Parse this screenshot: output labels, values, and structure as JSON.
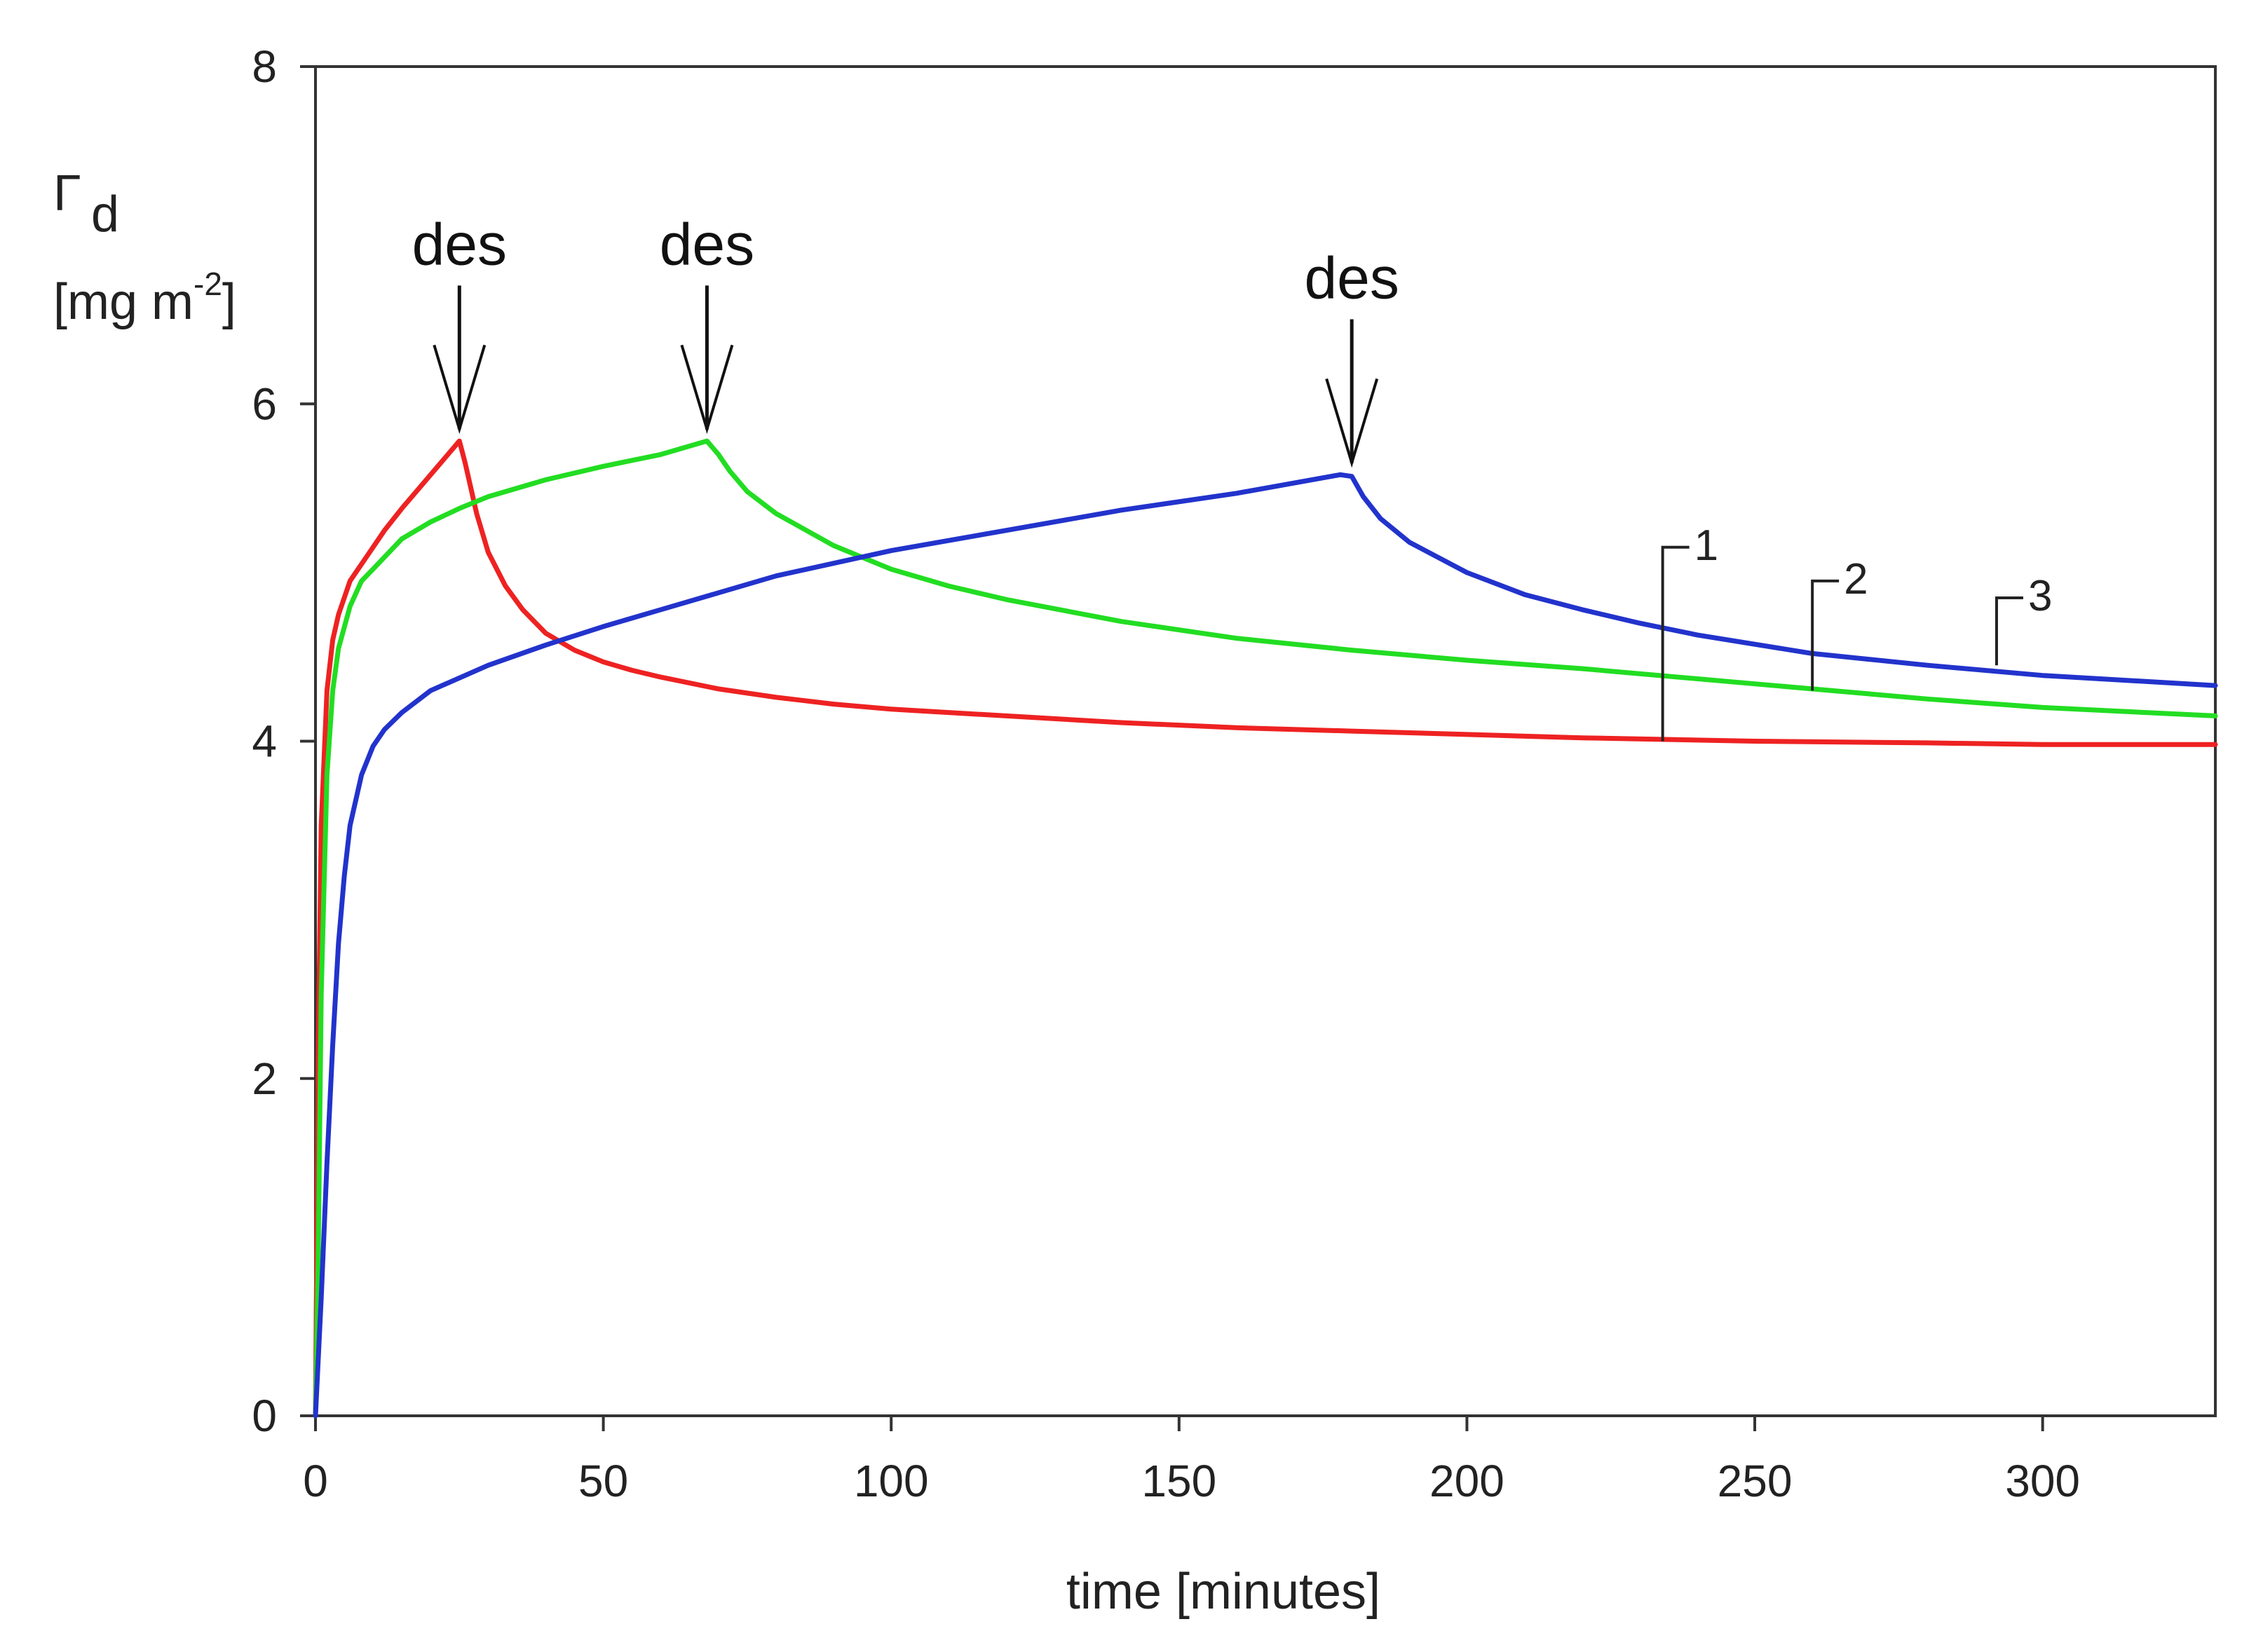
{
  "chart_data": {
    "type": "line",
    "title": "",
    "xlabel": "time [minutes]",
    "ylabel_symbol": "Γ",
    "ylabel_subscript": "d",
    "ylabel_unit_prefix": "[mg m",
    "ylabel_unit_exponent": "-2",
    "ylabel_unit_suffix": "]",
    "xlim": [
      0,
      330
    ],
    "ylim": [
      0,
      8
    ],
    "xticks": [
      0,
      50,
      100,
      150,
      200,
      250,
      300
    ],
    "yticks": [
      0,
      2,
      4,
      6,
      8
    ],
    "grid": false,
    "series": [
      {
        "name": "1",
        "color": "#ee2222",
        "x": [
          0,
          0.5,
          1,
          2,
          3,
          4,
          6,
          8,
          10,
          12,
          15,
          18,
          21,
          25,
          26,
          28,
          30,
          33,
          36,
          40,
          45,
          50,
          55,
          60,
          70,
          80,
          90,
          100,
          120,
          140,
          160,
          180,
          200,
          220,
          250,
          280,
          300,
          330
        ],
        "values": [
          0,
          2.2,
          3.5,
          4.3,
          4.6,
          4.75,
          4.95,
          5.05,
          5.15,
          5.25,
          5.38,
          5.5,
          5.62,
          5.78,
          5.65,
          5.35,
          5.12,
          4.92,
          4.78,
          4.64,
          4.54,
          4.47,
          4.42,
          4.38,
          4.31,
          4.26,
          4.22,
          4.19,
          4.15,
          4.11,
          4.08,
          4.06,
          4.04,
          4.02,
          4.0,
          3.99,
          3.98,
          3.98
        ]
      },
      {
        "name": "2",
        "color": "#22dd22",
        "x": [
          0,
          0.5,
          1,
          2,
          3,
          4,
          6,
          8,
          10,
          15,
          20,
          25,
          30,
          40,
          50,
          60,
          68,
          70,
          72,
          75,
          80,
          90,
          100,
          110,
          120,
          140,
          160,
          180,
          200,
          220,
          250,
          280,
          300,
          330
        ],
        "values": [
          0,
          1.0,
          2.5,
          3.8,
          4.3,
          4.55,
          4.8,
          4.95,
          5.02,
          5.2,
          5.3,
          5.38,
          5.45,
          5.55,
          5.63,
          5.7,
          5.78,
          5.7,
          5.6,
          5.48,
          5.35,
          5.16,
          5.02,
          4.92,
          4.84,
          4.71,
          4.61,
          4.54,
          4.48,
          4.43,
          4.34,
          4.25,
          4.2,
          4.15
        ]
      },
      {
        "name": "3",
        "color": "#2233cc",
        "x": [
          0,
          1,
          2,
          3,
          4,
          5,
          6,
          8,
          10,
          12,
          15,
          20,
          30,
          40,
          50,
          60,
          80,
          100,
          120,
          140,
          160,
          178,
          180,
          182,
          185,
          190,
          200,
          210,
          220,
          230,
          240,
          260,
          280,
          300,
          330
        ],
        "values": [
          0,
          0.7,
          1.5,
          2.2,
          2.8,
          3.2,
          3.5,
          3.8,
          3.97,
          4.07,
          4.17,
          4.3,
          4.45,
          4.57,
          4.68,
          4.78,
          4.98,
          5.13,
          5.25,
          5.37,
          5.47,
          5.58,
          5.57,
          5.45,
          5.32,
          5.18,
          5.0,
          4.87,
          4.78,
          4.7,
          4.63,
          4.52,
          4.45,
          4.39,
          4.33
        ]
      }
    ],
    "annotations": [
      {
        "text": "des",
        "x": 25,
        "y_arrow_tip": 5.85
      },
      {
        "text": "des",
        "x": 68,
        "y_arrow_tip": 5.85
      },
      {
        "text": "des",
        "x": 180,
        "y_arrow_tip": 5.65
      }
    ],
    "series_labels": [
      {
        "label": "1",
        "x": 234,
        "y_from": 4.0,
        "y_to": 5.15
      },
      {
        "label": "2",
        "x": 260,
        "y_from": 4.3,
        "y_to": 4.95
      },
      {
        "label": "3",
        "x": 292,
        "y_from": 4.45,
        "y_to": 4.85
      }
    ]
  }
}
